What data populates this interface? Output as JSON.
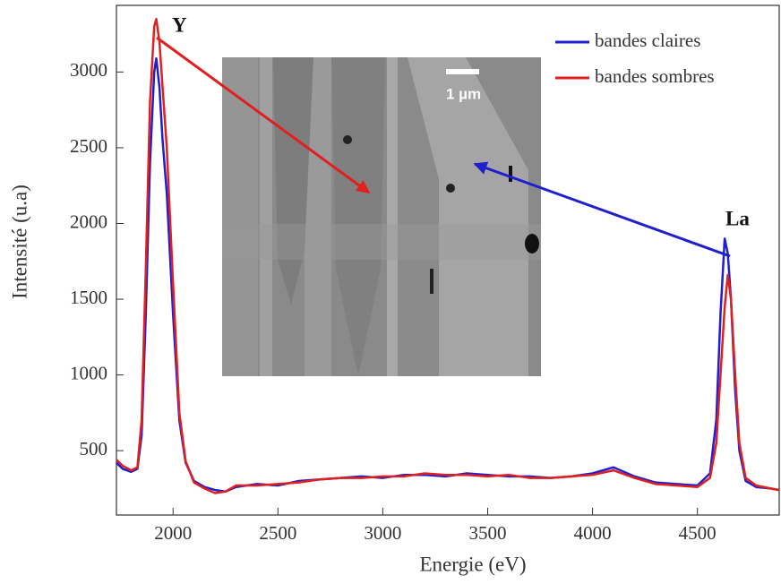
{
  "chart_data": {
    "type": "line",
    "x_label": "Energie (eV)",
    "y_label": "Intensité (u.a)",
    "x": [
      1730,
      1760,
      1800,
      1830,
      1850,
      1870,
      1890,
      1910,
      1920,
      1935,
      1950,
      1970,
      2000,
      2030,
      2060,
      2100,
      2150,
      2200,
      2250,
      2300,
      2400,
      2500,
      2600,
      2700,
      2800,
      2900,
      3000,
      3100,
      3200,
      3300,
      3400,
      3500,
      3600,
      3700,
      3800,
      3900,
      4000,
      4100,
      4200,
      4300,
      4400,
      4500,
      4560,
      4590,
      4610,
      4630,
      4645,
      4660,
      4680,
      4700,
      4730,
      4780,
      4850,
      4890
    ],
    "series": [
      {
        "name": "bandes claires",
        "color": "#1f1fd0",
        "values": [
          420,
          380,
          360,
          380,
          600,
          1400,
          2400,
          3000,
          3090,
          2900,
          2550,
          2200,
          1400,
          700,
          420,
          300,
          260,
          240,
          230,
          260,
          280,
          270,
          300,
          310,
          320,
          330,
          320,
          340,
          340,
          330,
          350,
          340,
          330,
          330,
          320,
          330,
          350,
          390,
          330,
          290,
          280,
          270,
          350,
          700,
          1400,
          1900,
          1800,
          1500,
          900,
          500,
          300,
          260,
          250,
          240
        ]
      },
      {
        "name": "bandes sombres",
        "color": "#e02020",
        "values": [
          440,
          400,
          370,
          390,
          700,
          1700,
          2800,
          3300,
          3350,
          3200,
          2900,
          2500,
          1600,
          750,
          430,
          290,
          250,
          220,
          230,
          270,
          270,
          280,
          290,
          310,
          320,
          320,
          330,
          330,
          350,
          340,
          340,
          330,
          340,
          320,
          320,
          330,
          340,
          370,
          320,
          280,
          270,
          260,
          320,
          550,
          1000,
          1450,
          1660,
          1500,
          1000,
          550,
          320,
          270,
          250,
          240
        ]
      }
    ],
    "xlim": [
      1730,
      4890
    ],
    "ylim": [
      75,
      3440
    ],
    "xticks": [
      2000,
      2500,
      3000,
      3500,
      4000,
      4500
    ],
    "yticks": [
      500,
      1000,
      1500,
      2000,
      2500,
      3000
    ],
    "annotations": [
      "Y",
      "La"
    ],
    "inset_scale_label": "1 µm"
  }
}
